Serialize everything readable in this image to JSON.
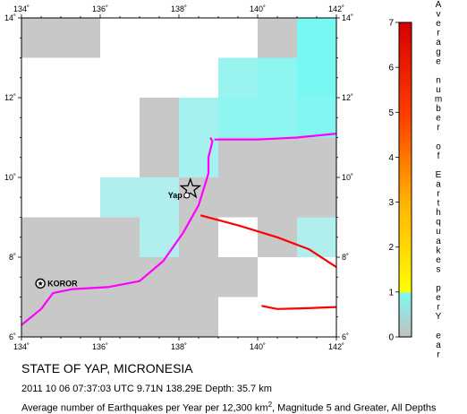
{
  "map": {
    "lon_range": [
      134,
      142
    ],
    "lat_range": [
      6,
      14
    ],
    "lon_ticks": [
      "134˚",
      "136˚",
      "138˚",
      "140˚",
      "142˚"
    ],
    "lat_ticks": [
      "6˚",
      "8˚",
      "10˚",
      "12˚",
      "14˚"
    ],
    "places": [
      {
        "name": "Yap",
        "lon": 138.2,
        "lat": 9.55
      },
      {
        "name": "KOROR",
        "lon": 134.48,
        "lat": 7.34
      }
    ],
    "epicenter": {
      "lon": 138.29,
      "lat": 9.71
    },
    "plate_boundaries": [
      {
        "color": "#ff00ff",
        "points": [
          [
            134.0,
            6.3
          ],
          [
            134.5,
            6.7
          ],
          [
            134.8,
            7.1
          ],
          [
            135.3,
            7.2
          ],
          [
            136.2,
            7.25
          ],
          [
            137.0,
            7.4
          ],
          [
            137.6,
            7.9
          ],
          [
            138.1,
            8.6
          ],
          [
            138.5,
            9.3
          ],
          [
            138.75,
            10.1
          ],
          [
            138.75,
            10.5
          ],
          [
            138.85,
            10.9
          ],
          [
            138.8,
            11.0
          ]
        ]
      },
      {
        "color": "#ff00ff",
        "points": [
          [
            138.9,
            10.95
          ],
          [
            140.0,
            10.95
          ],
          [
            141.0,
            11.0
          ],
          [
            142.0,
            11.1
          ]
        ]
      },
      {
        "color": "#ff0000",
        "points": [
          [
            138.55,
            9.05
          ],
          [
            139.5,
            8.8
          ],
          [
            140.5,
            8.5
          ],
          [
            141.3,
            8.2
          ],
          [
            142.0,
            7.75
          ]
        ]
      },
      {
        "color": "#ff0000",
        "points": [
          [
            140.1,
            6.78
          ],
          [
            140.5,
            6.7
          ],
          [
            141.2,
            6.72
          ],
          [
            142.0,
            6.75
          ]
        ]
      }
    ],
    "grid_cells": [
      {
        "lon": 134,
        "lat": 13,
        "value": 0.05
      },
      {
        "lon": 135,
        "lat": 13,
        "value": 0.05
      },
      {
        "lon": 140,
        "lat": 13,
        "value": 0.05
      },
      {
        "lon": 141,
        "lat": 13,
        "value": 1.0
      },
      {
        "lon": 141,
        "lat": 12,
        "value": 1.0
      },
      {
        "lon": 140,
        "lat": 12,
        "value": 0.8
      },
      {
        "lon": 139,
        "lat": 12,
        "value": 0.7
      },
      {
        "lon": 137,
        "lat": 11,
        "value": 0.05
      },
      {
        "lon": 138,
        "lat": 11,
        "value": 0.6
      },
      {
        "lon": 139,
        "lat": 11,
        "value": 0.8
      },
      {
        "lon": 140,
        "lat": 11,
        "value": 0.8
      },
      {
        "lon": 141,
        "lat": 11,
        "value": 0.9
      },
      {
        "lon": 137,
        "lat": 10,
        "value": 0.05
      },
      {
        "lon": 138,
        "lat": 10,
        "value": 0.6
      },
      {
        "lon": 139,
        "lat": 10,
        "value": 0.05
      },
      {
        "lon": 140,
        "lat": 10,
        "value": 0.05
      },
      {
        "lon": 141,
        "lat": 10,
        "value": 0.05
      },
      {
        "lon": 136,
        "lat": 9,
        "value": 0.5
      },
      {
        "lon": 137,
        "lat": 9,
        "value": 0.5
      },
      {
        "lon": 138,
        "lat": 9,
        "value": 0.05
      },
      {
        "lon": 139,
        "lat": 9,
        "value": 0.05
      },
      {
        "lon": 140,
        "lat": 9,
        "value": 0.05
      },
      {
        "lon": 141,
        "lat": 9,
        "value": 0.05
      },
      {
        "lon": 134,
        "lat": 8,
        "value": 0.05
      },
      {
        "lon": 135,
        "lat": 8,
        "value": 0.05
      },
      {
        "lon": 136,
        "lat": 8,
        "value": 0.05
      },
      {
        "lon": 137,
        "lat": 8,
        "value": 0.5
      },
      {
        "lon": 138,
        "lat": 8,
        "value": 0.05
      },
      {
        "lon": 140,
        "lat": 8,
        "value": 0.05
      },
      {
        "lon": 141,
        "lat": 8,
        "value": 0.5
      },
      {
        "lon": 134,
        "lat": 7,
        "value": 0.05
      },
      {
        "lon": 135,
        "lat": 7,
        "value": 0.05
      },
      {
        "lon": 136,
        "lat": 7,
        "value": 0.05
      },
      {
        "lon": 137,
        "lat": 7,
        "value": 0.05
      },
      {
        "lon": 138,
        "lat": 7,
        "value": 0.05
      },
      {
        "lon": 139,
        "lat": 7,
        "value": 0.05
      },
      {
        "lon": 134,
        "lat": 6,
        "value": 0.05
      },
      {
        "lon": 135,
        "lat": 6,
        "value": 0.05
      },
      {
        "lon": 136,
        "lat": 6,
        "value": 0.05
      },
      {
        "lon": 137,
        "lat": 6,
        "value": 0.05
      },
      {
        "lon": 138,
        "lat": 6,
        "value": 0.05
      }
    ]
  },
  "legend": {
    "title_chars": [
      "A",
      "v",
      "e",
      "r",
      "a",
      "g",
      "e",
      "n",
      "u",
      "m",
      "b",
      "e",
      "r",
      "o",
      "f",
      "E",
      "a",
      "r",
      "t",
      "h",
      "q",
      "u",
      "a",
      "k",
      "e",
      "s",
      "p",
      "e",
      "r",
      "Y",
      "e",
      "a",
      "r"
    ],
    "ticks": [
      "0",
      "1",
      "2",
      "3",
      "4",
      "5",
      "6",
      "7"
    ],
    "range": [
      0,
      7
    ],
    "stops": [
      {
        "value": 0,
        "color": "#c0c0c0"
      },
      {
        "value": 1,
        "color": "#7ff9f2"
      },
      {
        "value": 1.02,
        "color": "#ffff00"
      },
      {
        "value": 3,
        "color": "#ffb200"
      },
      {
        "value": 5,
        "color": "#ff3c00"
      },
      {
        "value": 7,
        "color": "#d60000"
      }
    ]
  },
  "captions": {
    "title": "STATE OF YAP, MICRONESIA",
    "event": "2011 10 06 07:37:03 UTC 9.71N 138.29E Depth: 35.7 km",
    "avg_prefix": "Average number of Earthquakes per Year per 12,300 km",
    "avg_sup": "2",
    "avg_suffix": ", Magnitude 5 and Greater, All Depths"
  }
}
